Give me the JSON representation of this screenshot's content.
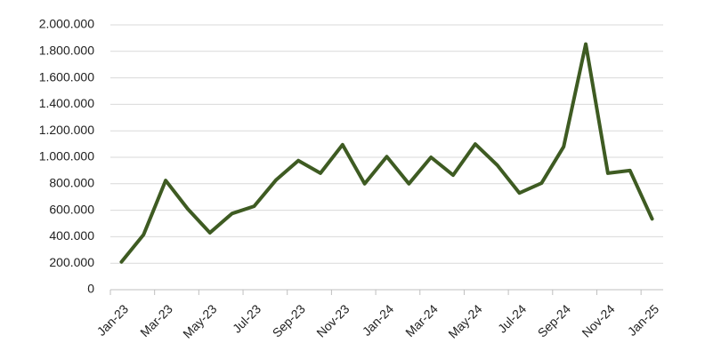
{
  "chart_data": {
    "type": "line",
    "categories": [
      "Jan-23",
      null,
      "Mar-23",
      null,
      "May-23",
      null,
      "Jul-23",
      null,
      "Sep-23",
      null,
      "Nov-23",
      null,
      "Jan-24",
      null,
      "Mar-24",
      null,
      "May-24",
      null,
      "Jul-24",
      null,
      "Sep-24",
      null,
      "Nov-24",
      null,
      "Jan-25"
    ],
    "values": [
      210000,
      415000,
      825000,
      610000,
      430000,
      575000,
      630000,
      830000,
      975000,
      880000,
      1095000,
      800000,
      1005000,
      800000,
      1000000,
      865000,
      1100000,
      940000,
      730000,
      805000,
      1080000,
      1855000,
      880000,
      900000,
      535000
    ],
    "color": "#3e5b22",
    "ylim": [
      0,
      2000000
    ],
    "yticks": [
      0,
      {
        "value": 200000,
        "label": "200.000"
      },
      {
        "value": 400000,
        "label": "400.000"
      },
      {
        "value": 600000,
        "label": "600.000"
      },
      {
        "value": 800000,
        "label": "800.000"
      },
      {
        "value": 1000000,
        "label": "1.000.000"
      },
      {
        "value": 1200000,
        "label": "1.200.000"
      },
      {
        "value": 1400000,
        "label": "1.400.000"
      },
      {
        "value": 1600000,
        "label": "1.600.000"
      },
      {
        "value": 1800000,
        "label": "1.800.000"
      },
      {
        "value": 2000000,
        "label": "2.000.000"
      }
    ],
    "grid": true
  }
}
